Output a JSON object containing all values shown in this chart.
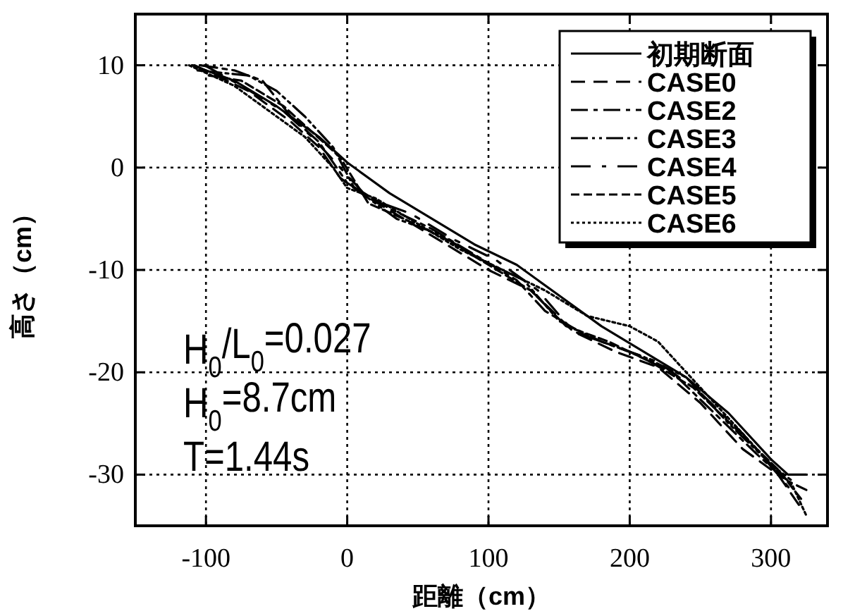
{
  "chart_data": {
    "type": "line",
    "xlabel": "距離（cm）",
    "ylabel": "高さ（cm）",
    "xlim": [
      -150,
      340
    ],
    "ylim": [
      -35,
      15
    ],
    "xticks": [
      -100,
      0,
      100,
      200,
      300
    ],
    "yticks": [
      -30,
      -20,
      -10,
      0,
      10
    ],
    "grid": true,
    "legend": "top right",
    "annotations": [
      "H$_{0}$/L$_{0}$=0.027",
      "H$_{0}$=8.7cm",
      "T=1.44s"
    ],
    "series": [
      {
        "name": "初期断面",
        "color": "#000000",
        "line_style": "solid",
        "x": [
          -110,
          -80,
          -50,
          -20,
          0,
          30,
          60,
          90,
          120,
          150,
          180,
          210,
          240,
          270,
          300,
          312,
          325
        ],
        "values": [
          10,
          8.5,
          6,
          3,
          0.5,
          -2.5,
          -5,
          -7.5,
          -9.5,
          -12.5,
          -15.5,
          -18,
          -20.5,
          -24,
          -28.5,
          -30,
          -30
        ]
      },
      {
        "name": "CASE0",
        "color": "#000000",
        "line_style": "dashed",
        "x": [
          -108,
          -70,
          -40,
          -20,
          -5,
          10,
          40,
          70,
          100,
          130,
          160,
          190,
          220,
          250,
          280,
          305,
          320
        ],
        "values": [
          10,
          7.5,
          4.5,
          2,
          -1,
          -2.5,
          -5,
          -7.5,
          -10,
          -12,
          -16,
          -18,
          -19.5,
          -23,
          -27.5,
          -30,
          -33
        ]
      },
      {
        "name": "CASE2",
        "color": "#000000",
        "line_style": "dashed",
        "x": [
          -104,
          -80,
          -60,
          -40,
          -20,
          0,
          30,
          60,
          90,
          120,
          140,
          170,
          200,
          230,
          260,
          290,
          310,
          325
        ],
        "values": [
          10,
          9.5,
          8.5,
          5,
          2.5,
          -1.5,
          -4,
          -6,
          -8.5,
          -11,
          -14,
          -16.5,
          -18,
          -20,
          -24,
          -28,
          -30.5,
          -31.5
        ]
      },
      {
        "name": "CASE3",
        "color": "#000000",
        "line_style": "dashed",
        "x": [
          -106,
          -70,
          -50,
          -30,
          -10,
          5,
          35,
          65,
          95,
          125,
          150,
          180,
          210,
          240,
          270,
          300,
          314
        ],
        "values": [
          9.5,
          9,
          7.5,
          5,
          2,
          -2,
          -5,
          -6.5,
          -9,
          -11,
          -15,
          -17,
          -18.5,
          -20.5,
          -25,
          -29,
          -30.5
        ]
      },
      {
        "name": "CASE4",
        "color": "#000000",
        "line_style": "dashed",
        "x": [
          -101,
          -75,
          -45,
          -25,
          -5,
          15,
          45,
          75,
          105,
          135,
          160,
          190,
          220,
          250,
          280,
          305,
          317
        ],
        "values": [
          10,
          8,
          5.5,
          3,
          0,
          -3,
          -4.5,
          -7,
          -9,
          -12,
          -16,
          -17.5,
          -19,
          -22,
          -26,
          -30,
          -32
        ]
      },
      {
        "name": "CASE5",
        "color": "#000000",
        "line_style": "dashed",
        "x": [
          -98,
          -75,
          -45,
          -25,
          -5,
          15,
          40,
          70,
          100,
          130,
          155,
          185,
          215,
          245,
          275,
          305,
          322
        ],
        "values": [
          9,
          8.5,
          6,
          3.5,
          1,
          -3.5,
          -5,
          -7,
          -9.5,
          -12,
          -15.5,
          -17,
          -19,
          -21.5,
          -25.5,
          -29.5,
          -32.5
        ]
      },
      {
        "name": "CASE6",
        "color": "#000000",
        "line_style": "dotted",
        "x": [
          -112,
          -80,
          -50,
          -30,
          -10,
          0,
          20,
          50,
          80,
          110,
          140,
          170,
          200,
          220,
          240,
          270,
          300,
          315,
          325
        ],
        "values": [
          10,
          8,
          5,
          3,
          0,
          -2,
          -3,
          -5.5,
          -8,
          -10,
          -12,
          -14.5,
          -15.5,
          -17,
          -20,
          -24.5,
          -29,
          -31,
          -34
        ]
      }
    ]
  }
}
